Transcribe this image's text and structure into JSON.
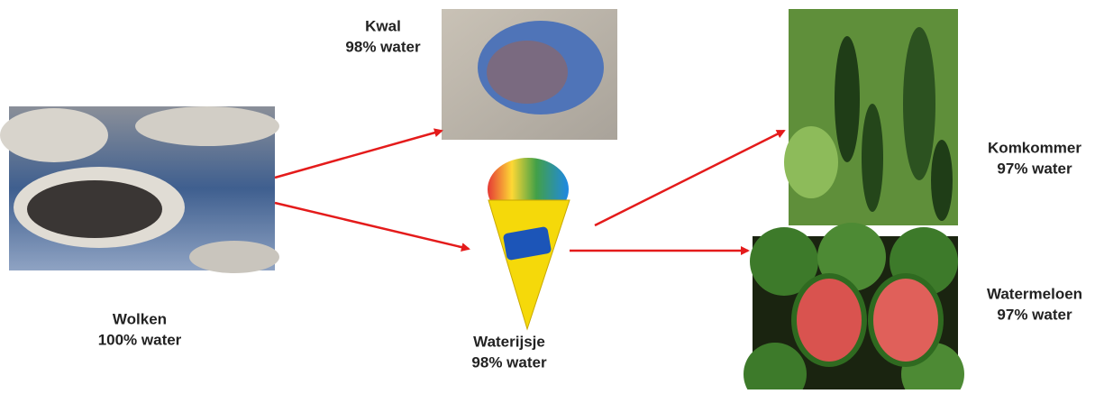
{
  "nodes": [
    {
      "name": "Wolken",
      "label": "100% water"
    },
    {
      "name": "Kwal",
      "label": "98% water"
    },
    {
      "name": "Waterijsje",
      "label": "98% water"
    },
    {
      "name": "Komkommer",
      "label": "97% water"
    },
    {
      "name": "Watermeloen",
      "label": "97% water"
    }
  ]
}
